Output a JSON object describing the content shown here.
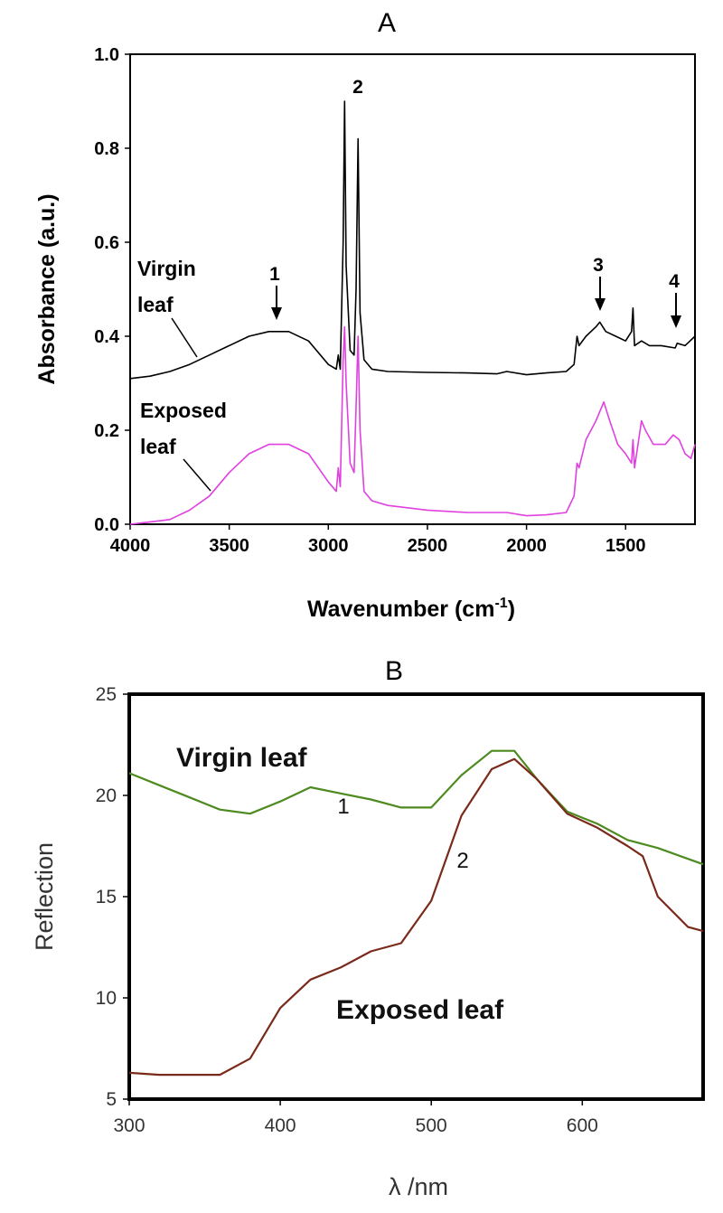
{
  "chart_data": [
    {
      "type": "line",
      "panel_label": "A",
      "xlabel": "Wavenumber (cm",
      "xlabel_sup": "-1",
      "xlabel_close": ")",
      "ylabel": "Absorbance (a.u.)",
      "xlim": [
        4000,
        1150
      ],
      "ylim": [
        0.0,
        1.0
      ],
      "x_reversed": true,
      "x_ticks": [
        "4000",
        "3500",
        "3000",
        "2500",
        "2000",
        "1500"
      ],
      "x_tick_values": [
        4000,
        3500,
        3000,
        2500,
        2000,
        1500
      ],
      "y_ticks": [
        "0.0",
        "0.2",
        "0.4",
        "0.6",
        "0.8",
        "1.0"
      ],
      "y_tick_values": [
        0.0,
        0.2,
        0.4,
        0.6,
        0.8,
        1.0
      ],
      "grid": false,
      "series": [
        {
          "name": "Virgin leaf",
          "label_lines": [
            "Virgin",
            "leaf"
          ],
          "color": "#000000",
          "points": [
            [
              4000,
              0.31
            ],
            [
              3900,
              0.315
            ],
            [
              3800,
              0.325
            ],
            [
              3700,
              0.34
            ],
            [
              3600,
              0.36
            ],
            [
              3500,
              0.38
            ],
            [
              3400,
              0.4
            ],
            [
              3300,
              0.41
            ],
            [
              3200,
              0.41
            ],
            [
              3100,
              0.39
            ],
            [
              3000,
              0.34
            ],
            [
              2960,
              0.33
            ],
            [
              2950,
              0.36
            ],
            [
              2940,
              0.33
            ],
            [
              2925,
              0.6
            ],
            [
              2918,
              0.9
            ],
            [
              2910,
              0.55
            ],
            [
              2890,
              0.37
            ],
            [
              2870,
              0.36
            ],
            [
              2860,
              0.5
            ],
            [
              2850,
              0.82
            ],
            [
              2840,
              0.45
            ],
            [
              2820,
              0.35
            ],
            [
              2780,
              0.33
            ],
            [
              2700,
              0.325
            ],
            [
              2500,
              0.323
            ],
            [
              2300,
              0.322
            ],
            [
              2150,
              0.32
            ],
            [
              2100,
              0.325
            ],
            [
              2000,
              0.318
            ],
            [
              1900,
              0.322
            ],
            [
              1800,
              0.325
            ],
            [
              1760,
              0.34
            ],
            [
              1745,
              0.4
            ],
            [
              1735,
              0.38
            ],
            [
              1700,
              0.4
            ],
            [
              1650,
              0.42
            ],
            [
              1630,
              0.43
            ],
            [
              1600,
              0.41
            ],
            [
              1550,
              0.4
            ],
            [
              1500,
              0.39
            ],
            [
              1470,
              0.41
            ],
            [
              1463,
              0.46
            ],
            [
              1455,
              0.38
            ],
            [
              1420,
              0.39
            ],
            [
              1380,
              0.38
            ],
            [
              1320,
              0.38
            ],
            [
              1250,
              0.375
            ],
            [
              1240,
              0.385
            ],
            [
              1200,
              0.38
            ],
            [
              1150,
              0.4
            ]
          ]
        },
        {
          "name": "Exposed leaf",
          "label_lines": [
            "Exposed",
            "leaf"
          ],
          "color": "#e040e0",
          "points": [
            [
              4000,
              0.0
            ],
            [
              3900,
              0.005
            ],
            [
              3800,
              0.01
            ],
            [
              3700,
              0.03
            ],
            [
              3600,
              0.06
            ],
            [
              3500,
              0.11
            ],
            [
              3400,
              0.15
            ],
            [
              3300,
              0.17
            ],
            [
              3200,
              0.17
            ],
            [
              3100,
              0.15
            ],
            [
              3000,
              0.09
            ],
            [
              2960,
              0.07
            ],
            [
              2950,
              0.12
            ],
            [
              2940,
              0.08
            ],
            [
              2925,
              0.35
            ],
            [
              2918,
              0.42
            ],
            [
              2910,
              0.3
            ],
            [
              2890,
              0.13
            ],
            [
              2870,
              0.11
            ],
            [
              2860,
              0.25
            ],
            [
              2850,
              0.4
            ],
            [
              2840,
              0.2
            ],
            [
              2820,
              0.07
            ],
            [
              2780,
              0.05
            ],
            [
              2700,
              0.04
            ],
            [
              2500,
              0.03
            ],
            [
              2300,
              0.025
            ],
            [
              2100,
              0.025
            ],
            [
              2000,
              0.018
            ],
            [
              1900,
              0.02
            ],
            [
              1800,
              0.025
            ],
            [
              1760,
              0.06
            ],
            [
              1745,
              0.13
            ],
            [
              1735,
              0.12
            ],
            [
              1700,
              0.18
            ],
            [
              1650,
              0.22
            ],
            [
              1610,
              0.26
            ],
            [
              1580,
              0.22
            ],
            [
              1540,
              0.17
            ],
            [
              1500,
              0.15
            ],
            [
              1470,
              0.13
            ],
            [
              1463,
              0.18
            ],
            [
              1455,
              0.12
            ],
            [
              1420,
              0.22
            ],
            [
              1400,
              0.2
            ],
            [
              1360,
              0.17
            ],
            [
              1300,
              0.17
            ],
            [
              1260,
              0.19
            ],
            [
              1230,
              0.18
            ],
            [
              1200,
              0.15
            ],
            [
              1170,
              0.14
            ],
            [
              1150,
              0.17
            ]
          ]
        }
      ],
      "annotations": [
        "1",
        "2",
        "3",
        "4"
      ],
      "annotation_x": [
        3280,
        2890,
        1640,
        1240
      ]
    },
    {
      "type": "line",
      "panel_label": "B",
      "xlabel": "λ /nm",
      "ylabel": "Reflection",
      "xlim": [
        300,
        680
      ],
      "ylim": [
        5,
        25
      ],
      "x_ticks": [
        "300",
        "400",
        "500",
        "600"
      ],
      "x_tick_values": [
        300,
        400,
        500,
        600
      ],
      "y_ticks": [
        "5",
        "10",
        "15",
        "20",
        "25"
      ],
      "y_tick_values": [
        5,
        10,
        15,
        20,
        25
      ],
      "grid": false,
      "series": [
        {
          "name": "Virgin leaf",
          "number": "1",
          "color": "#4d8a1f",
          "points": [
            [
              300,
              21.1
            ],
            [
              320,
              20.5
            ],
            [
              340,
              19.9
            ],
            [
              360,
              19.3
            ],
            [
              380,
              19.1
            ],
            [
              400,
              19.7
            ],
            [
              420,
              20.4
            ],
            [
              440,
              20.1
            ],
            [
              460,
              19.8
            ],
            [
              480,
              19.4
            ],
            [
              500,
              19.4
            ],
            [
              520,
              21.0
            ],
            [
              540,
              22.2
            ],
            [
              555,
              22.2
            ],
            [
              570,
              20.8
            ],
            [
              590,
              19.2
            ],
            [
              610,
              18.6
            ],
            [
              630,
              17.8
            ],
            [
              650,
              17.4
            ],
            [
              680,
              16.6
            ]
          ]
        },
        {
          "name": "Exposed leaf",
          "number": "2",
          "color": "#7a2a1a",
          "points": [
            [
              300,
              6.3
            ],
            [
              320,
              6.2
            ],
            [
              340,
              6.2
            ],
            [
              360,
              6.2
            ],
            [
              380,
              7.0
            ],
            [
              400,
              9.5
            ],
            [
              420,
              10.9
            ],
            [
              440,
              11.5
            ],
            [
              460,
              12.3
            ],
            [
              480,
              12.7
            ],
            [
              500,
              14.8
            ],
            [
              520,
              19.0
            ],
            [
              540,
              21.3
            ],
            [
              555,
              21.8
            ],
            [
              570,
              20.8
            ],
            [
              590,
              19.1
            ],
            [
              610,
              18.4
            ],
            [
              630,
              17.5
            ],
            [
              640,
              17.0
            ],
            [
              650,
              15.0
            ],
            [
              670,
              13.5
            ],
            [
              680,
              13.3
            ]
          ]
        }
      ]
    }
  ]
}
